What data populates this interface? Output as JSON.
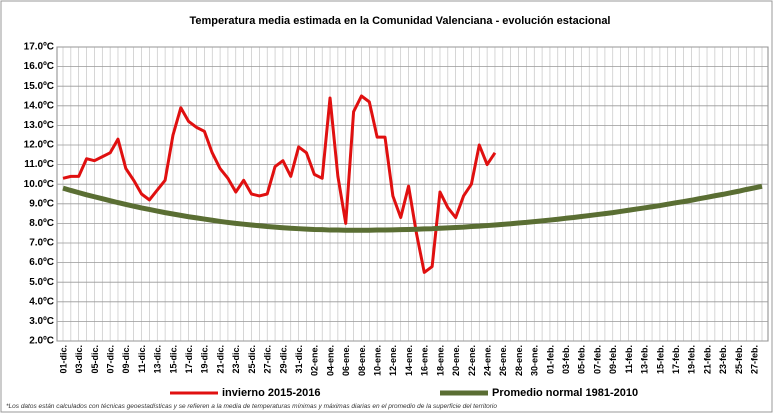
{
  "chart_data": {
    "type": "line",
    "title": "Temperatura media estimada en la Comunidad Valenciana - evolución estacional",
    "note": "*Los datos están calculados con técnicas geoestadísticas y se refieren a la media de temperaturas mínimas y máximas diarias en el promedio de la superficie del territorio",
    "categories": [
      "01-dic.",
      null,
      "03-dic.",
      null,
      "05-dic.",
      null,
      "07-dic.",
      null,
      "09-dic.",
      null,
      "11-dic.",
      null,
      "13-dic.",
      null,
      "15-dic.",
      null,
      "17-dic.",
      null,
      "19-dic.",
      null,
      "21-dic.",
      null,
      "23-dic.",
      null,
      "25-dic.",
      null,
      "27-dic.",
      null,
      "29-dic.",
      null,
      "31-dic.",
      null,
      "02-ene.",
      null,
      "04-ene.",
      null,
      "06-ene.",
      null,
      "08-ene.",
      null,
      "10-ene.",
      null,
      "12-ene.",
      null,
      "14-ene.",
      null,
      "16-ene.",
      null,
      "18-ene.",
      null,
      "20-ene.",
      null,
      "22-ene.",
      null,
      "24-ene.",
      null,
      "26-ene.",
      null,
      "28-ene.",
      null,
      "30-ene.",
      null,
      "01-feb.",
      null,
      "03-feb.",
      null,
      "05-feb.",
      null,
      "07-feb.",
      null,
      "09-feb.",
      null,
      "11-feb.",
      null,
      "13-feb.",
      null,
      "15-feb.",
      null,
      "17-feb.",
      null,
      "19-feb.",
      null,
      "21-feb.",
      null,
      "23-feb.",
      null,
      "25-feb.",
      null,
      "27-feb.",
      null
    ],
    "series": [
      {
        "name": "invierno 2015-2016",
        "color": "#e01010",
        "values": [
          10.3,
          10.4,
          10.4,
          11.3,
          11.2,
          11.4,
          11.6,
          12.3,
          10.8,
          10.2,
          9.5,
          9.2,
          9.7,
          10.2,
          12.5,
          13.9,
          13.2,
          12.9,
          12.7,
          11.6,
          10.8,
          10.3,
          9.6,
          10.2,
          9.5,
          9.4,
          9.5,
          10.9,
          11.2,
          10.4,
          11.9,
          11.6,
          10.5,
          10.3,
          14.4,
          10.4,
          8.0,
          13.7,
          14.5,
          14.2,
          12.4,
          12.4,
          9.4,
          8.3,
          9.9,
          7.5,
          5.5,
          5.8,
          9.6,
          8.8,
          8.3,
          9.4,
          10.0,
          12.0,
          11.0,
          11.6,
          null,
          null,
          null,
          null,
          null,
          null,
          null,
          null,
          null,
          null,
          null,
          null,
          null,
          null,
          null,
          null,
          null,
          null,
          null,
          null,
          null,
          null,
          null,
          null,
          null,
          null,
          null,
          null,
          null,
          null,
          null,
          null,
          null,
          null
        ]
      },
      {
        "name": "Promedio normal 1981-2010",
        "color": "#5a6e33",
        "values": [
          9.8,
          9.68,
          9.57,
          9.46,
          9.36,
          9.26,
          9.16,
          9.06,
          8.97,
          8.88,
          8.79,
          8.71,
          8.63,
          8.55,
          8.48,
          8.41,
          8.34,
          8.28,
          8.22,
          8.16,
          8.1,
          8.05,
          8.0,
          7.96,
          7.92,
          7.88,
          7.84,
          7.81,
          7.78,
          7.75,
          7.73,
          7.71,
          7.69,
          7.68,
          7.66,
          7.66,
          7.65,
          7.65,
          7.65,
          7.65,
          7.66,
          7.66,
          7.67,
          7.68,
          7.69,
          7.7,
          7.72,
          7.73,
          7.75,
          7.77,
          7.79,
          7.81,
          7.84,
          7.86,
          7.89,
          7.92,
          7.95,
          7.98,
          8.02,
          8.05,
          8.09,
          8.13,
          8.17,
          8.21,
          8.26,
          8.3,
          8.35,
          8.4,
          8.45,
          8.5,
          8.55,
          8.61,
          8.67,
          8.73,
          8.79,
          8.85,
          8.91,
          8.98,
          9.05,
          9.11,
          9.18,
          9.26,
          9.33,
          9.41,
          9.48,
          9.56,
          9.64,
          9.73,
          9.81,
          9.89
        ]
      }
    ],
    "ylim": [
      2,
      17
    ],
    "yticks": [
      {
        "value": 2,
        "label": "2.0ºC"
      },
      {
        "value": 3,
        "label": "3.0ºC"
      },
      {
        "value": 4,
        "label": "4.0ºC"
      },
      {
        "value": 5,
        "label": "5.0ºC"
      },
      {
        "value": 6,
        "label": "6.0ºC"
      },
      {
        "value": 7,
        "label": "7.0ºC"
      },
      {
        "value": 8,
        "label": "8.0ºC"
      },
      {
        "value": 9,
        "label": "9.0ºC"
      },
      {
        "value": 10,
        "label": "10.0ºC"
      },
      {
        "value": 11,
        "label": "11.0ºC"
      },
      {
        "value": 12,
        "label": "12.0ºC"
      },
      {
        "value": 13,
        "label": "13.0ºC"
      },
      {
        "value": 14,
        "label": "14.0ºC"
      },
      {
        "value": 15,
        "label": "15.0ºC"
      },
      {
        "value": 16,
        "label": "16.0ºC"
      },
      {
        "value": 17,
        "label": "17.0ºC"
      }
    ],
    "grid": true,
    "legend": "bottom"
  }
}
